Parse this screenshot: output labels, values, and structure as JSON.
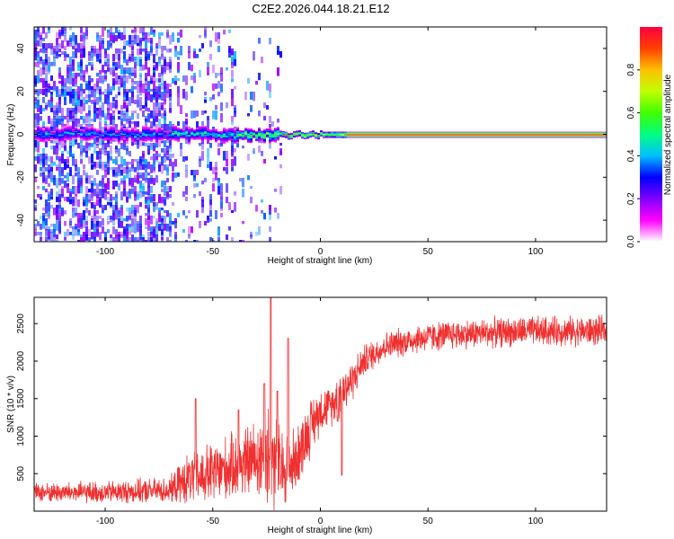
{
  "title": "C2E2.2026.044.18.21.E12",
  "colorbar": {
    "label": "Normalized spectral amplitude",
    "ticks": [
      {
        "value": 0.0,
        "label": "0.0"
      },
      {
        "value": 0.2,
        "label": "0.2"
      },
      {
        "value": 0.4,
        "label": "0.4"
      },
      {
        "value": 0.6,
        "label": "0.6"
      },
      {
        "value": 0.8,
        "label": "0.8"
      }
    ],
    "range": [
      0,
      1
    ],
    "colors": [
      "#ffffff",
      "#ff00ff",
      "#8000ff",
      "#0000ff",
      "#00c0ff",
      "#00ff80",
      "#40ff00",
      "#c0ff00",
      "#ffc000",
      "#ff4000",
      "#ff0040"
    ]
  },
  "chart_data": [
    {
      "type": "heatmap",
      "title": "",
      "xlabel": "Height of straight line (km)",
      "ylabel": "Frequency (Hz)",
      "xlim": [
        -133,
        133
      ],
      "ylim": [
        -50,
        50
      ],
      "xticks": [
        {
          "value": -100,
          "label": "-100"
        },
        {
          "value": -50,
          "label": "-50"
        },
        {
          "value": 0,
          "label": "0"
        },
        {
          "value": 50,
          "label": "50"
        },
        {
          "value": 100,
          "label": "100"
        }
      ],
      "yticks": [
        {
          "value": -40,
          "label": "-40"
        },
        {
          "value": -20,
          "label": "-20"
        },
        {
          "value": 0,
          "label": "0"
        },
        {
          "value": 20,
          "label": "20"
        },
        {
          "value": 40,
          "label": "40"
        }
      ],
      "description_regions": [
        {
          "x_start": -133,
          "x_end": -70,
          "noise_level": 0.35,
          "carrier_amp": 0.45
        },
        {
          "x_start": -70,
          "x_end": -40,
          "noise_level": 0.12,
          "carrier_amp": 0.55
        },
        {
          "x_start": -40,
          "x_end": -18,
          "noise_level": 0.04,
          "carrier_amp": 0.7
        },
        {
          "x_start": -18,
          "x_end": 12,
          "noise_level": 0.0,
          "carrier_amp": 0.85
        },
        {
          "x_start": 12,
          "x_end": 133,
          "noise_level": 0.0,
          "carrier_amp": 0.98
        }
      ]
    },
    {
      "type": "line",
      "title": "",
      "xlabel": "Height of straight line (km)",
      "ylabel": "SNR (10 * v/v)",
      "xlim": [
        -133,
        133
      ],
      "ylim": [
        0,
        2850
      ],
      "xticks": [
        {
          "value": -100,
          "label": "-100"
        },
        {
          "value": -50,
          "label": "-50"
        },
        {
          "value": 0,
          "label": "0"
        },
        {
          "value": 50,
          "label": "50"
        },
        {
          "value": 100,
          "label": "100"
        }
      ],
      "yticks": [
        {
          "value": 500,
          "label": "500"
        },
        {
          "value": 1000,
          "label": "1000"
        },
        {
          "value": 1500,
          "label": "1500"
        },
        {
          "value": 2000,
          "label": "2000"
        },
        {
          "value": 2500,
          "label": "2500"
        }
      ],
      "series_color": "#f03030",
      "envelope": [
        {
          "x": -133,
          "y": 250,
          "spread": 150
        },
        {
          "x": -100,
          "y": 250,
          "spread": 170
        },
        {
          "x": -70,
          "y": 280,
          "spread": 200
        },
        {
          "x": -62,
          "y": 420,
          "spread": 380
        },
        {
          "x": -50,
          "y": 500,
          "spread": 500
        },
        {
          "x": -40,
          "y": 600,
          "spread": 500
        },
        {
          "x": -30,
          "y": 700,
          "spread": 600
        },
        {
          "x": -24,
          "y": 750,
          "spread": 900
        },
        {
          "x": -18,
          "y": 550,
          "spread": 650
        },
        {
          "x": -12,
          "y": 650,
          "spread": 500
        },
        {
          "x": -5,
          "y": 1100,
          "spread": 450
        },
        {
          "x": 0,
          "y": 1350,
          "spread": 350
        },
        {
          "x": 5,
          "y": 1400,
          "spread": 300
        },
        {
          "x": 10,
          "y": 1600,
          "spread": 400
        },
        {
          "x": 15,
          "y": 1750,
          "spread": 300
        },
        {
          "x": 20,
          "y": 2000,
          "spread": 250
        },
        {
          "x": 30,
          "y": 2200,
          "spread": 220
        },
        {
          "x": 45,
          "y": 2300,
          "spread": 230
        },
        {
          "x": 60,
          "y": 2350,
          "spread": 230
        },
        {
          "x": 80,
          "y": 2380,
          "spread": 230
        },
        {
          "x": 100,
          "y": 2400,
          "spread": 230
        },
        {
          "x": 133,
          "y": 2400,
          "spread": 230
        }
      ],
      "spikes": [
        {
          "x": -58,
          "y": 1500
        },
        {
          "x": -23,
          "y": 2850
        },
        {
          "x": -20,
          "y": 1600
        },
        {
          "x": -15,
          "y": 2300
        },
        {
          "x": -26,
          "y": 1700
        },
        {
          "x": -38,
          "y": 1350
        },
        {
          "x": 8,
          "y": 1200
        },
        {
          "x": 10,
          "y": 480
        }
      ]
    }
  ]
}
